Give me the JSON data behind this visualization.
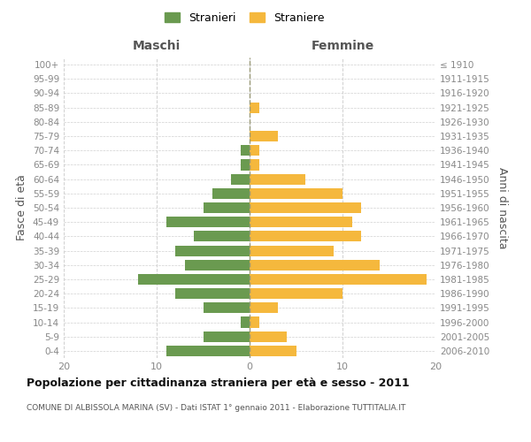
{
  "age_groups": [
    "100+",
    "95-99",
    "90-94",
    "85-89",
    "80-84",
    "75-79",
    "70-74",
    "65-69",
    "60-64",
    "55-59",
    "50-54",
    "45-49",
    "40-44",
    "35-39",
    "30-34",
    "25-29",
    "20-24",
    "15-19",
    "10-14",
    "5-9",
    "0-4"
  ],
  "birth_years": [
    "≤ 1910",
    "1911-1915",
    "1916-1920",
    "1921-1925",
    "1926-1930",
    "1931-1935",
    "1936-1940",
    "1941-1945",
    "1946-1950",
    "1951-1955",
    "1956-1960",
    "1961-1965",
    "1966-1970",
    "1971-1975",
    "1976-1980",
    "1981-1985",
    "1986-1990",
    "1991-1995",
    "1996-2000",
    "2001-2005",
    "2006-2010"
  ],
  "maschi": [
    0,
    0,
    0,
    0,
    0,
    0,
    1,
    1,
    2,
    4,
    5,
    9,
    6,
    8,
    7,
    12,
    8,
    5,
    1,
    5,
    9
  ],
  "femmine": [
    0,
    0,
    0,
    1,
    0,
    3,
    1,
    1,
    6,
    10,
    12,
    11,
    12,
    9,
    14,
    19,
    10,
    3,
    1,
    4,
    5
  ],
  "maschi_color": "#6a9a50",
  "femmine_color": "#f5b83d",
  "title": "Popolazione per cittadinanza straniera per età e sesso - 2011",
  "subtitle": "COMUNE DI ALBISSOLA MARINA (SV) - Dati ISTAT 1° gennaio 2011 - Elaborazione TUTTITALIA.IT",
  "xlabel_left": "Maschi",
  "xlabel_right": "Femmine",
  "ylabel_left": "Fasce di età",
  "ylabel_right": "Anni di nascita",
  "xlim": 20,
  "legend_maschi": "Stranieri",
  "legend_femmine": "Straniere",
  "background_color": "#ffffff",
  "grid_color": "#d0d0d0"
}
